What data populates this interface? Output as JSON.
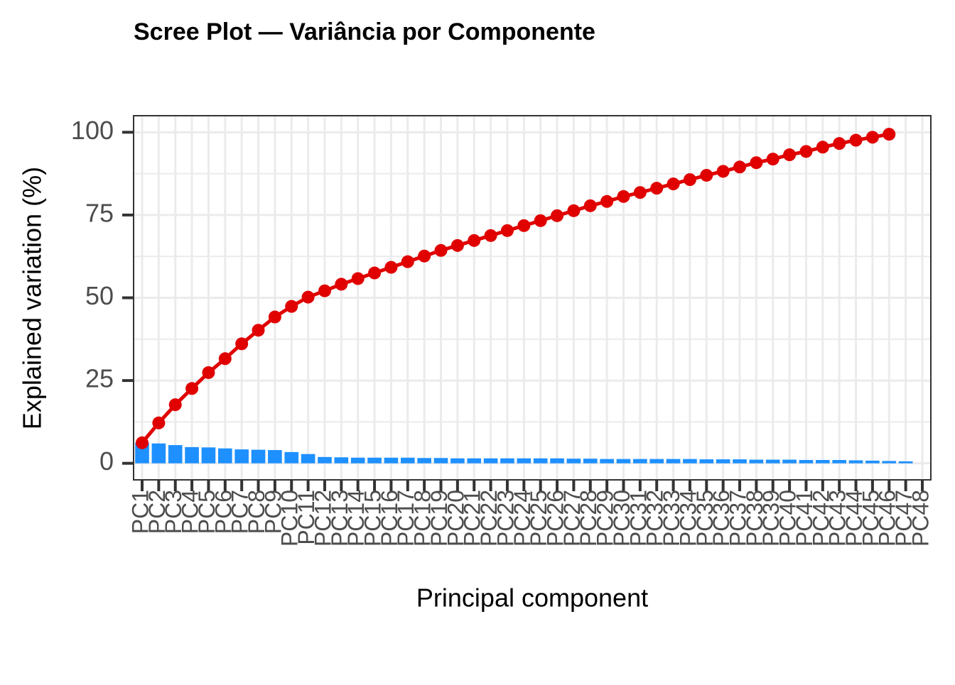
{
  "chart_data": {
    "type": "bar-line",
    "title": "Scree Plot — Variância por Componente",
    "x_label": "Principal component",
    "y_label": "Explained variation (%)",
    "categories": [
      "PC1",
      "PC2",
      "PC3",
      "PC4",
      "PC5",
      "PC6",
      "PC7",
      "PC8",
      "PC9",
      "PC10",
      "PC11",
      "PC12",
      "PC13",
      "PC14",
      "PC15",
      "PC16",
      "PC17",
      "PC18",
      "PC19",
      "PC20",
      "PC21",
      "PC22",
      "PC23",
      "PC24",
      "PC25",
      "PC26",
      "PC27",
      "PC28",
      "PC29",
      "PC30",
      "PC31",
      "PC32",
      "PC33",
      "PC34",
      "PC35",
      "PC36",
      "PC37",
      "PC38",
      "PC39",
      "PC40",
      "PC41",
      "PC42",
      "PC43",
      "PC44",
      "PC45",
      "PC46",
      "PC47",
      "PC48"
    ],
    "series": [
      {
        "type": "bar",
        "color": "#1e90ff",
        "values": [
          6.2,
          6.0,
          5.5,
          4.9,
          4.8,
          4.5,
          4.2,
          4.1,
          4.0,
          3.4,
          2.8,
          1.9,
          1.8,
          1.7,
          1.7,
          1.7,
          1.7,
          1.6,
          1.6,
          1.5,
          1.5,
          1.5,
          1.5,
          1.5,
          1.5,
          1.5,
          1.4,
          1.4,
          1.3,
          1.3,
          1.3,
          1.3,
          1.3,
          1.3,
          1.2,
          1.2,
          1.2,
          1.1,
          1.1,
          1.1,
          1.0,
          1.0,
          1.0,
          0.9,
          0.8,
          0.7,
          0.6,
          null
        ]
      },
      {
        "type": "line",
        "color": "#e00000",
        "values": [
          6.2,
          12.2,
          17.7,
          22.6,
          27.4,
          31.6,
          36.1,
          40.2,
          44.2,
          47.4,
          50.2,
          52.1,
          54.1,
          55.8,
          57.5,
          59.2,
          60.9,
          62.6,
          64.3,
          65.8,
          67.3,
          68.8,
          70.3,
          71.8,
          73.3,
          74.8,
          76.3,
          77.8,
          79.1,
          80.6,
          81.8,
          83.1,
          84.4,
          85.7,
          87.0,
          88.2,
          89.5,
          90.8,
          91.9,
          93.2,
          94.2,
          95.5,
          96.6,
          97.6,
          98.5,
          99.4,
          null,
          null
        ]
      }
    ],
    "ylim": [
      -5,
      105
    ],
    "yticks": [
      0,
      25,
      50,
      75,
      100
    ],
    "grid": true
  }
}
